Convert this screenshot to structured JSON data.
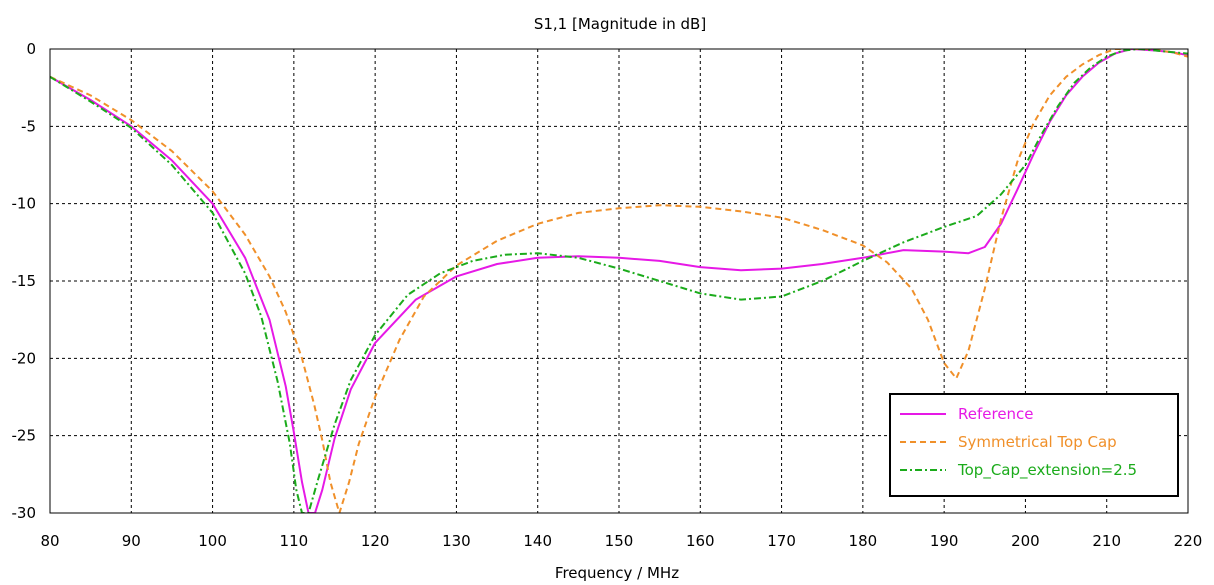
{
  "chart_data": {
    "type": "line",
    "title": "S1,1 [Magnitude in dB]",
    "xlabel": "Frequency / MHz",
    "ylabel": "",
    "xlim": [
      80,
      220
    ],
    "ylim": [
      -30,
      0
    ],
    "xticks": [
      80,
      90,
      100,
      110,
      120,
      130,
      140,
      150,
      160,
      170,
      180,
      190,
      200,
      210,
      220
    ],
    "yticks": [
      0,
      -5,
      -10,
      -15,
      -20,
      -25,
      -30
    ],
    "grid": true,
    "legend_position": "bottom-right",
    "series": [
      {
        "name": "Reference",
        "color": "#e619e6",
        "dash": "solid",
        "x": [
          80,
          85,
          90,
          95,
          100,
          104,
          107,
          109,
          110,
          111,
          111.8,
          112.6,
          113.5,
          115,
          117,
          120,
          125,
          130,
          135,
          140,
          145,
          150,
          155,
          160,
          165,
          170,
          175,
          180,
          185,
          190,
          193,
          195,
          197,
          199,
          201,
          203,
          205,
          207,
          209,
          211,
          213,
          216,
          218,
          220
        ],
        "y": [
          -1.8,
          -3.3,
          -5.0,
          -7.2,
          -10.0,
          -13.5,
          -17.5,
          -21.8,
          -24.8,
          -28.0,
          -30.0,
          -30.0,
          -28.5,
          -25.2,
          -22.0,
          -19.0,
          -16.2,
          -14.7,
          -13.9,
          -13.5,
          -13.4,
          -13.5,
          -13.7,
          -14.1,
          -14.3,
          -14.2,
          -13.9,
          -13.5,
          -13.0,
          -13.1,
          -13.2,
          -12.8,
          -11.3,
          -9.1,
          -6.8,
          -4.7,
          -3.0,
          -1.8,
          -0.9,
          -0.3,
          0.0,
          -0.1,
          -0.2,
          -0.4
        ]
      },
      {
        "name": "Symmetrical Top Cap",
        "color": "#f0902a",
        "dash": "dashed",
        "x": [
          80,
          85,
          90,
          95,
          100,
          104,
          107,
          109,
          111,
          112.5,
          113.5,
          114.5,
          115.6,
          116.8,
          118,
          120,
          123,
          126,
          130,
          135,
          140,
          145,
          150,
          155,
          160,
          165,
          170,
          175,
          180,
          183,
          186,
          188,
          190,
          191.5,
          193,
          195,
          197,
          199,
          201,
          203,
          205,
          207,
          209,
          211,
          213,
          215,
          218,
          220
        ],
        "y": [
          -1.8,
          -3.0,
          -4.6,
          -6.6,
          -9.2,
          -12.0,
          -14.7,
          -17.0,
          -20.0,
          -23.0,
          -25.3,
          -28.0,
          -30.0,
          -28.0,
          -25.5,
          -22.5,
          -18.8,
          -16.0,
          -14.0,
          -12.4,
          -11.3,
          -10.6,
          -10.3,
          -10.1,
          -10.2,
          -10.5,
          -10.9,
          -11.7,
          -12.7,
          -13.8,
          -15.5,
          -17.5,
          -20.3,
          -21.3,
          -19.5,
          -15.5,
          -11.0,
          -7.3,
          -4.8,
          -3.0,
          -1.8,
          -1.0,
          -0.4,
          0.0,
          0.0,
          0.0,
          -0.2,
          -0.5
        ]
      },
      {
        "name": "Top_Cap_extension=2.5",
        "color": "#1bab1b",
        "dash": "dashdot",
        "x": [
          80,
          85,
          90,
          95,
          100,
          104,
          106,
          108,
          109.5,
          110.3,
          111,
          111.8,
          113,
          115,
          117,
          120,
          124,
          128,
          132,
          136,
          140,
          145,
          150,
          155,
          160,
          165,
          170,
          175,
          180,
          185,
          190,
          194,
          197,
          200,
          202,
          204,
          206,
          208,
          210,
          212,
          214,
          216,
          218,
          220
        ],
        "y": [
          -1.8,
          -3.4,
          -5.1,
          -7.5,
          -10.6,
          -14.5,
          -17.3,
          -21.5,
          -25.5,
          -28.5,
          -30.0,
          -30.0,
          -27.8,
          -24.3,
          -21.4,
          -18.5,
          -15.9,
          -14.5,
          -13.7,
          -13.3,
          -13.2,
          -13.5,
          -14.2,
          -15.0,
          -15.8,
          -16.2,
          -16.0,
          -15.0,
          -13.7,
          -12.5,
          -11.5,
          -10.8,
          -9.4,
          -7.5,
          -5.5,
          -3.7,
          -2.2,
          -1.2,
          -0.5,
          -0.1,
          0.0,
          -0.1,
          -0.2,
          -0.3
        ]
      }
    ]
  }
}
